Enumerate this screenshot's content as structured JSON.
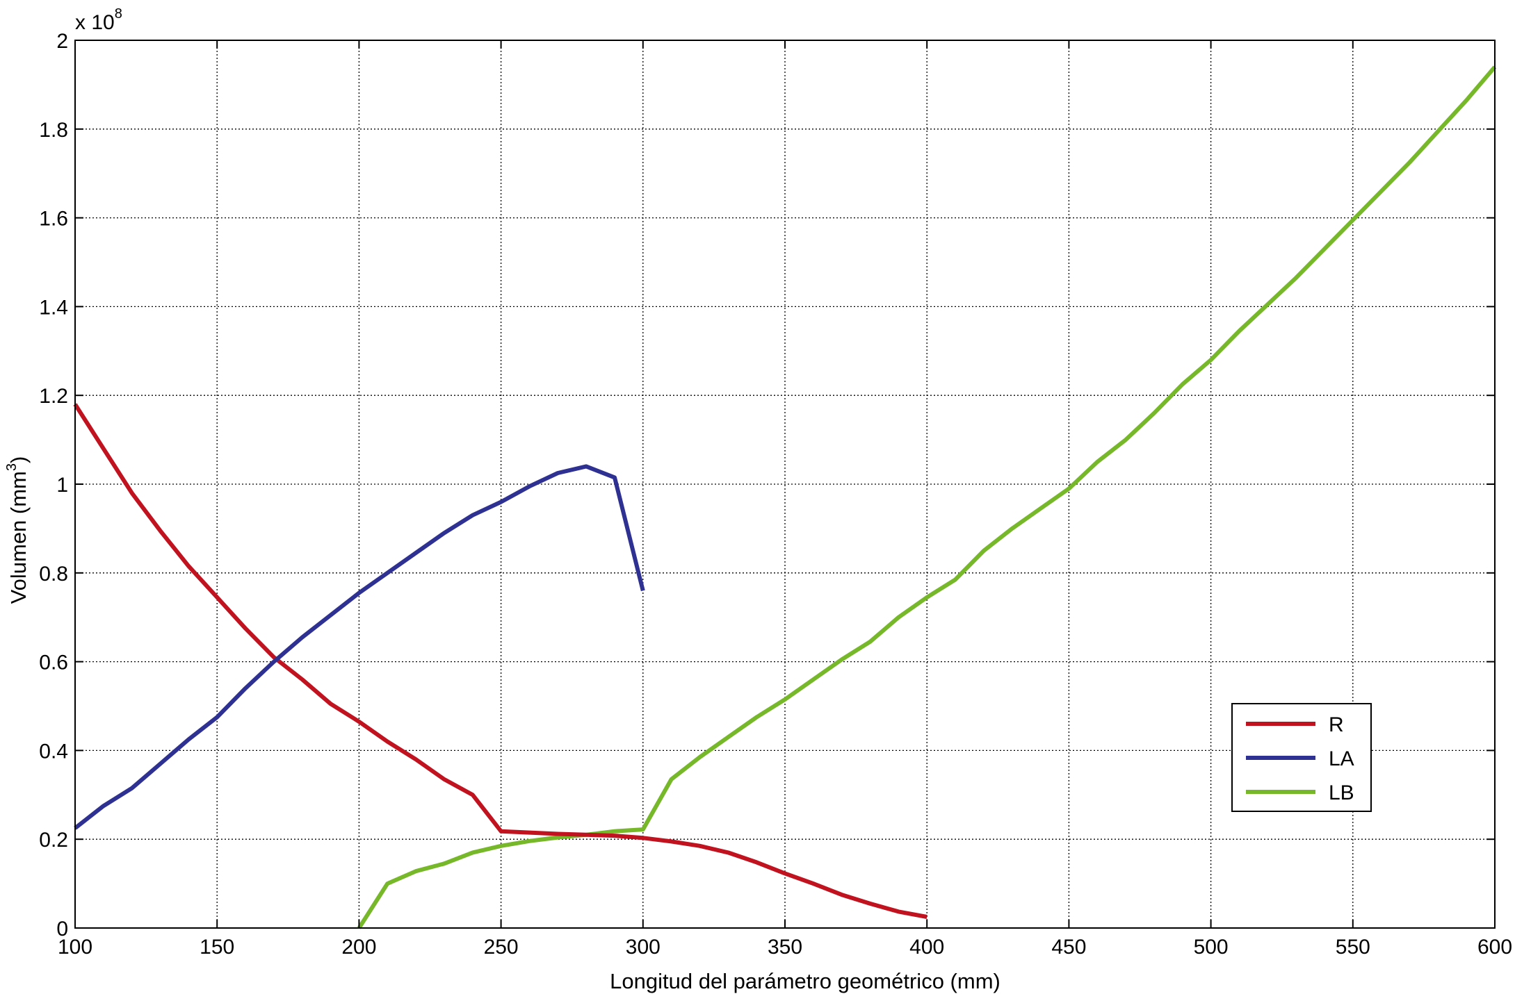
{
  "chart_data": {
    "type": "line",
    "title": "",
    "xlabel": "Longitud del parámetro geométrico (mm)",
    "ylabel": "Volumen (mm",
    "ylabel_superscript": "3",
    "ylabel_suffix": ")",
    "y_multiplier_base": "x 10",
    "y_multiplier_exponent": "8",
    "xlim": [
      100,
      600
    ],
    "ylim": [
      0,
      2
    ],
    "xticks": [
      100,
      150,
      200,
      250,
      300,
      350,
      400,
      450,
      500,
      550,
      600
    ],
    "yticks": [
      0,
      0.2,
      0.4,
      0.6,
      0.8,
      1,
      1.2,
      1.4,
      1.6,
      1.8,
      2
    ],
    "xtick_labels": [
      "100",
      "150",
      "200",
      "250",
      "300",
      "350",
      "400",
      "450",
      "500",
      "550",
      "600"
    ],
    "ytick_labels": [
      "0",
      "0.2",
      "0.4",
      "0.6",
      "0.8",
      "1",
      "1.2",
      "1.4",
      "1.6",
      "1.8",
      "2"
    ],
    "grid": true,
    "grid_style": "dotted",
    "legend_position": "lower-right",
    "series": [
      {
        "name": "R",
        "color": "#c1121f",
        "x": [
          100,
          110,
          120,
          130,
          140,
          150,
          160,
          170,
          180,
          190,
          200,
          210,
          220,
          230,
          240,
          250,
          260,
          270,
          280,
          290,
          300,
          310,
          320,
          330,
          340,
          350,
          360,
          370,
          380,
          390,
          400
        ],
        "y": [
          1.18,
          1.08,
          0.98,
          0.895,
          0.815,
          0.745,
          0.675,
          0.61,
          0.56,
          0.505,
          0.465,
          0.42,
          0.38,
          0.335,
          0.3,
          0.218,
          0.215,
          0.212,
          0.21,
          0.208,
          0.203,
          0.195,
          0.185,
          0.17,
          0.148,
          0.123,
          0.1,
          0.075,
          0.055,
          0.037,
          0.025
        ]
      },
      {
        "name": "LA",
        "color": "#2e3192",
        "x": [
          100,
          110,
          120,
          130,
          140,
          150,
          160,
          170,
          180,
          190,
          200,
          210,
          220,
          230,
          240,
          250,
          260,
          270,
          280,
          290,
          300
        ],
        "y": [
          0.225,
          0.275,
          0.315,
          0.37,
          0.425,
          0.475,
          0.54,
          0.6,
          0.655,
          0.705,
          0.755,
          0.8,
          0.845,
          0.89,
          0.93,
          0.96,
          0.995,
          1.025,
          1.04,
          1.015,
          0.76
        ]
      },
      {
        "name": "LB",
        "color": "#76b82a",
        "x": [
          200,
          210,
          220,
          230,
          240,
          250,
          260,
          270,
          280,
          290,
          300,
          310,
          320,
          330,
          340,
          350,
          360,
          370,
          380,
          390,
          400,
          410,
          420,
          430,
          440,
          450,
          460,
          470,
          480,
          490,
          500,
          510,
          520,
          530,
          540,
          550,
          560,
          570,
          580,
          590,
          600
        ],
        "y": [
          0,
          0.1,
          0.128,
          0.145,
          0.17,
          0.185,
          0.196,
          0.204,
          0.21,
          0.218,
          0.222,
          0.335,
          0.385,
          0.43,
          0.475,
          0.515,
          0.56,
          0.605,
          0.645,
          0.7,
          0.745,
          0.785,
          0.85,
          0.9,
          0.945,
          0.99,
          1.05,
          1.1,
          1.16,
          1.225,
          1.28,
          1.345,
          1.405,
          1.465,
          1.53,
          1.595,
          1.66,
          1.725,
          1.795,
          1.865,
          1.94
        ]
      }
    ]
  }
}
